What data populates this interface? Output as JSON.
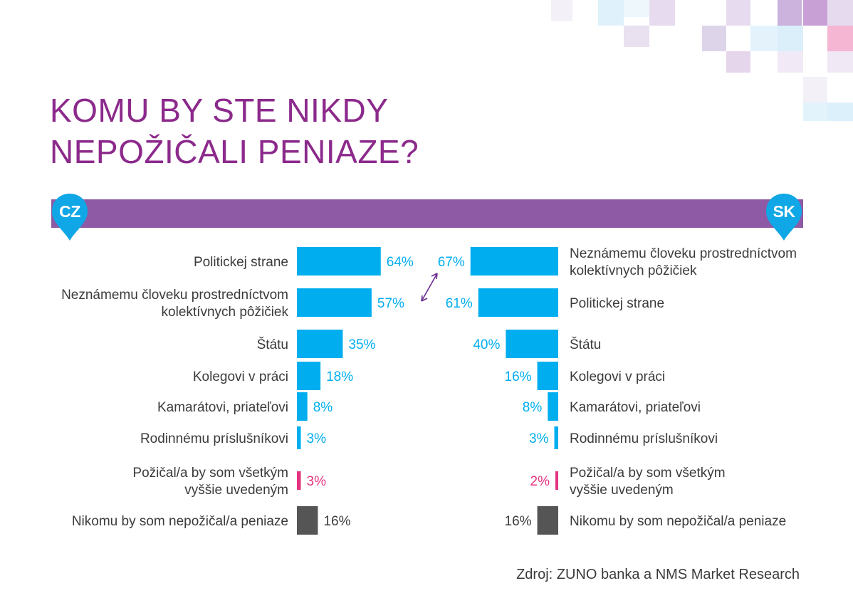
{
  "page": {
    "title_lines": [
      "KOMU BY STE NIKDY",
      "NEPOŽIČALI PENIAZE?"
    ],
    "source": "Zdroj: ZUNO banka a NMS Market Research",
    "colors": {
      "title": "#8c2a8c",
      "band": "#8e5aa5",
      "pin": "#0fa7e6",
      "bar_main": "#00aeef",
      "bar_all": "#e2347f",
      "bar_nobody": "#555555",
      "arrow": "#6b2c91"
    }
  },
  "chart_data": [
    {
      "type": "bar",
      "orientation": "horizontal",
      "country": "CZ",
      "categories": [
        "Politickej strane",
        "Neznámemu človeku prostredníctvom kolektívnych pôžičiek",
        "Štátu",
        "Kolegovi v práci",
        "Kamarátovi, priateľovi",
        "Rodinnému príslušníkovi",
        "Požičal/a by som všetkým vyššie uvedeným",
        "Nikomu by som nepožičal/a peniaze"
      ],
      "category_lines": [
        [
          "Politickej strane"
        ],
        [
          "Neznámemu človeku prostredníctvom",
          "kolektívnych pôžičiek"
        ],
        [
          "Štátu"
        ],
        [
          "Kolegovi v práci"
        ],
        [
          "Kamarátovi, priateľovi"
        ],
        [
          "Rodinnému príslušníkovi"
        ],
        [
          "Požičal/a by som všetkým",
          "vyššie uvedeným"
        ],
        [
          "Nikomu by som nepožičal/a peniaze"
        ]
      ],
      "values": [
        64,
        57,
        35,
        18,
        8,
        3,
        3,
        16
      ],
      "value_labels": [
        "64%",
        "57%",
        "35%",
        "18%",
        "8%",
        "3%",
        "3%",
        "16%"
      ]
    },
    {
      "type": "bar",
      "orientation": "horizontal",
      "country": "SK",
      "categories": [
        "Neznámemu človeku prostredníctvom kolektívnych pôžičiek",
        "Politickej strane",
        "Štátu",
        "Kolegovi v práci",
        "Kamarátovi, priateľovi",
        "Rodinnému príslušníkovi",
        "Požičal/a by som všetkým vyššie uvedeným",
        "Nikomu by som nepožičal/a peniaze"
      ],
      "category_lines": [
        [
          "Neznámemu človeku prostredníctvom",
          "kolektívnych pôžičiek"
        ],
        [
          "Politickej strane"
        ],
        [
          "Štátu"
        ],
        [
          "Kolegovi v práci"
        ],
        [
          "Kamarátovi, priateľovi"
        ],
        [
          "Rodinnému príslušníkovi"
        ],
        [
          "Požičal/a by som všetkým",
          "vyššie uvedeným"
        ],
        [
          "Nikomu by som nepožičal/a peniaze"
        ]
      ],
      "values": [
        67,
        61,
        40,
        16,
        8,
        3,
        2,
        16
      ],
      "value_labels": [
        "67%",
        "61%",
        "40%",
        "16%",
        "8%",
        "3%",
        "2%",
        "16%"
      ]
    }
  ]
}
